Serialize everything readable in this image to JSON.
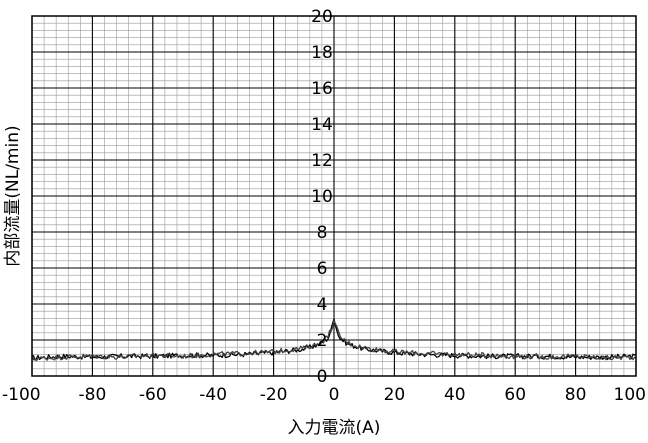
{
  "chart_data": {
    "type": "line",
    "title": "",
    "xlabel": "入力電流(A)",
    "ylabel": "内部流量(NL/min)",
    "xlim": [
      -100,
      100
    ],
    "ylim": [
      0,
      20
    ],
    "x_ticks": [
      -100,
      -80,
      -60,
      -40,
      -20,
      0,
      20,
      40,
      60,
      80,
      100
    ],
    "y_ticks": [
      0,
      2,
      4,
      6,
      8,
      10,
      12,
      14,
      16,
      18,
      20
    ],
    "x_tick_labels": [
      "-100",
      "-80",
      "-60",
      "-40",
      "-20",
      "0",
      "20",
      "40",
      "60",
      "80",
      "100"
    ],
    "y_tick_labels": [
      "0",
      "2",
      "4",
      "6",
      "8",
      "10",
      "12",
      "14",
      "16",
      "18",
      "20"
    ],
    "grid": {
      "major": true,
      "minor": true,
      "x_minor_step": 4,
      "y_minor_step": 0.4
    },
    "legend": "none",
    "series": [
      {
        "color": "#000000",
        "x": [
          -100,
          -90,
          -80,
          -70,
          -60,
          -50,
          -40,
          -30,
          -20,
          -15,
          -10,
          -6,
          -4,
          -2,
          -1,
          0,
          1,
          2,
          4,
          6,
          10,
          15,
          20,
          30,
          40,
          50,
          60,
          70,
          80,
          90,
          100
        ],
        "y": [
          1.0,
          1.1,
          1.05,
          1.1,
          1.1,
          1.15,
          1.15,
          1.2,
          1.3,
          1.4,
          1.5,
          1.7,
          1.85,
          2.1,
          2.5,
          3.3,
          2.5,
          2.1,
          1.85,
          1.7,
          1.5,
          1.4,
          1.3,
          1.2,
          1.15,
          1.1,
          1.1,
          1.1,
          1.05,
          1.05,
          1.1
        ]
      },
      {
        "color": "#444444",
        "x": [
          -100,
          -90,
          -80,
          -70,
          -60,
          -50,
          -40,
          -30,
          -20,
          -15,
          -10,
          -6,
          -4,
          -2,
          -1,
          0,
          1,
          2,
          4,
          6,
          10,
          15,
          20,
          30,
          40,
          50,
          60,
          70,
          80,
          90,
          100
        ],
        "y": [
          0.95,
          1.05,
          1.1,
          1.05,
          1.15,
          1.1,
          1.2,
          1.25,
          1.35,
          1.45,
          1.55,
          1.75,
          1.9,
          2.2,
          2.6,
          3.0,
          2.6,
          2.2,
          1.9,
          1.75,
          1.55,
          1.45,
          1.35,
          1.25,
          1.2,
          1.15,
          1.1,
          1.05,
          1.1,
          1.0,
          1.05
        ]
      }
    ]
  }
}
